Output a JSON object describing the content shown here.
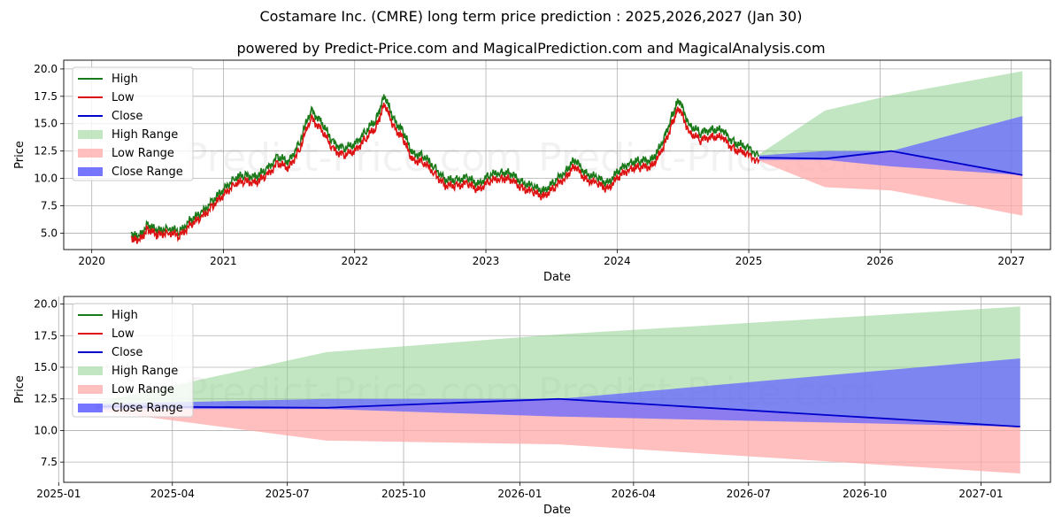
{
  "title": "Costamare Inc. (CMRE) long term price prediction : 2025,2026,2027 (Jan 30)",
  "subtitle": "powered by Predict-Price.com and MagicalPrediction.com and MagicalAnalysis.com",
  "watermark": "Predict-Price.com",
  "colors": {
    "high": "#1a7a1a",
    "low": "#dd1111",
    "close": "#0000cc",
    "high_range": "#8fd18f",
    "low_range": "#ffaaaa",
    "close_range": "#6666ff"
  },
  "chart_data": [
    {
      "type": "line",
      "xlabel": "Date",
      "ylabel": "Price",
      "x_ticks": [
        "2020",
        "2021",
        "2022",
        "2023",
        "2024",
        "2025",
        "2026",
        "2027"
      ],
      "y_ticks": [
        "5.0",
        "7.5",
        "10.0",
        "12.5",
        "15.0",
        "17.5",
        "20.0"
      ],
      "xlim": [
        "2019-10-15",
        "2027-04-20"
      ],
      "ylim": [
        3.5,
        20.8
      ],
      "grid": true,
      "legend_position": "top-left",
      "legend": [
        "High",
        "Low",
        "Close",
        "High Range",
        "Low Range",
        "Close Range"
      ],
      "history_points": [
        [
          "2020-04-20",
          4.8
        ],
        [
          "2020-05-10",
          4.4
        ],
        [
          "2020-06-05",
          5.6
        ],
        [
          "2020-07-01",
          5.0
        ],
        [
          "2020-08-01",
          5.3
        ],
        [
          "2020-09-01",
          4.9
        ],
        [
          "2020-10-01",
          6.0
        ],
        [
          "2020-11-01",
          6.6
        ],
        [
          "2020-12-01",
          7.7
        ],
        [
          "2021-01-01",
          8.7
        ],
        [
          "2021-02-01",
          9.8
        ],
        [
          "2021-03-01",
          10.0
        ],
        [
          "2021-04-01",
          9.9
        ],
        [
          "2021-05-01",
          10.5
        ],
        [
          "2021-06-01",
          11.7
        ],
        [
          "2021-07-01",
          11.2
        ],
        [
          "2021-08-01",
          13.0
        ],
        [
          "2021-09-01",
          15.9
        ],
        [
          "2021-10-01",
          14.8
        ],
        [
          "2021-11-01",
          13.0
        ],
        [
          "2021-12-01",
          12.4
        ],
        [
          "2022-01-01",
          12.8
        ],
        [
          "2022-02-01",
          14.0
        ],
        [
          "2022-03-01",
          15.0
        ],
        [
          "2022-03-25",
          17.2
        ],
        [
          "2022-04-20",
          15.0
        ],
        [
          "2022-05-15",
          14.0
        ],
        [
          "2022-06-10",
          12.0
        ],
        [
          "2022-07-10",
          11.8
        ],
        [
          "2022-08-10",
          10.8
        ],
        [
          "2022-09-10",
          9.6
        ],
        [
          "2022-10-10",
          9.6
        ],
        [
          "2022-11-10",
          9.8
        ],
        [
          "2022-12-10",
          9.2
        ],
        [
          "2023-01-10",
          10.0
        ],
        [
          "2023-02-10",
          10.3
        ],
        [
          "2023-03-10",
          10.2
        ],
        [
          "2023-04-10",
          9.4
        ],
        [
          "2023-05-10",
          9.0
        ],
        [
          "2023-06-10",
          8.6
        ],
        [
          "2023-07-10",
          9.4
        ],
        [
          "2023-08-10",
          10.4
        ],
        [
          "2023-09-05",
          11.4
        ],
        [
          "2023-10-05",
          10.2
        ],
        [
          "2023-11-05",
          9.8
        ],
        [
          "2023-12-05",
          9.3
        ],
        [
          "2024-01-05",
          10.4
        ],
        [
          "2024-02-05",
          11.2
        ],
        [
          "2024-03-05",
          11.3
        ],
        [
          "2024-04-05",
          11.4
        ],
        [
          "2024-05-05",
          12.8
        ],
        [
          "2024-06-01",
          15.3
        ],
        [
          "2024-06-20",
          16.8
        ],
        [
          "2024-07-20",
          14.6
        ],
        [
          "2024-08-20",
          13.8
        ],
        [
          "2024-09-20",
          14.2
        ],
        [
          "2024-10-20",
          14.0
        ],
        [
          "2024-11-20",
          13.0
        ],
        [
          "2024-12-20",
          12.6
        ],
        [
          "2025-01-30",
          11.9
        ]
      ],
      "forecast_dates": [
        "2025-01-30",
        "2025-08-01",
        "2026-02-01",
        "2027-02-01"
      ],
      "close": [
        11.9,
        11.8,
        12.5,
        10.3
      ],
      "high_range": [
        12.2,
        16.2,
        17.6,
        19.8
      ],
      "low_range": [
        11.6,
        9.2,
        8.9,
        6.6
      ],
      "close_range_upper": [
        12.1,
        12.5,
        12.5,
        15.7
      ],
      "close_range_lower": [
        11.7,
        11.7,
        11.1,
        10.3
      ]
    },
    {
      "type": "line",
      "xlabel": "Date",
      "ylabel": "Price",
      "x_ticks": [
        "2025-01",
        "2025-04",
        "2025-07",
        "2025-10",
        "2026-01",
        "2026-04",
        "2026-07",
        "2026-10",
        "2027-01"
      ],
      "y_ticks": [
        "7.5",
        "10.0",
        "12.5",
        "15.0",
        "17.5",
        "20.0"
      ],
      "xlim": [
        "2025-01-05",
        "2027-02-25"
      ],
      "ylim": [
        5.9,
        20.6
      ],
      "grid": true,
      "legend_position": "top-left",
      "legend": [
        "High",
        "Low",
        "Close",
        "High Range",
        "Low Range",
        "Close Range"
      ],
      "forecast_dates": [
        "2025-01-30",
        "2025-08-01",
        "2026-02-01",
        "2027-02-01"
      ],
      "close": [
        11.9,
        11.8,
        12.5,
        10.3
      ],
      "high_range": [
        12.2,
        16.2,
        17.6,
        19.8
      ],
      "low_range": [
        11.6,
        9.2,
        8.9,
        6.6
      ],
      "close_range_upper": [
        12.1,
        12.5,
        12.5,
        15.7
      ],
      "close_range_lower": [
        11.7,
        11.7,
        11.1,
        10.3
      ]
    }
  ]
}
